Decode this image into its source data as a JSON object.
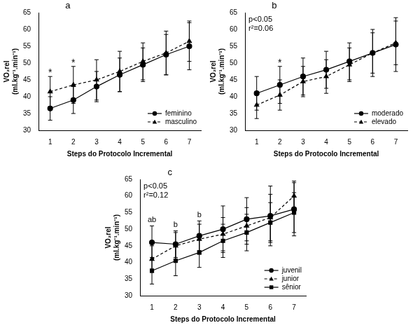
{
  "chart_data": [
    {
      "type": "line",
      "panel_label": "a",
      "x_label": "Steps do Protocolo Incremental",
      "y_label": [
        "VO₂rel",
        "(ml.kg⁻¹.min⁻¹)"
      ],
      "categories": [
        "1",
        "2",
        "3",
        "4",
        "5",
        "6",
        "7"
      ],
      "series": [
        {
          "name": "feminino",
          "color": "#000000",
          "marker": "circle",
          "line_style": "solid",
          "values": [
            36.5,
            39,
            43,
            46.5,
            49.5,
            52.5,
            55
          ],
          "errors": [
            3.5,
            4,
            4.5,
            5,
            5,
            6,
            7
          ]
        },
        {
          "name": "masculino",
          "color": "#000000",
          "marker": "triangle",
          "line_style": "dashed",
          "values": [
            41.5,
            43.5,
            45,
            47.5,
            50.5,
            53,
            56.5
          ],
          "errors": [
            4.5,
            5.5,
            6,
            6,
            5.5,
            6.5,
            6
          ]
        }
      ],
      "ylim": [
        30,
        65
      ],
      "yticks": [
        30,
        35,
        40,
        45,
        50,
        55,
        60,
        65
      ],
      "grid": false,
      "legend": "lower right",
      "annotations": [
        {
          "text": "*",
          "category": "1"
        },
        {
          "text": "*",
          "category": "2"
        }
      ]
    },
    {
      "type": "line",
      "panel_label": "b",
      "x_label": "Steps do Protocolo Incremental",
      "y_label": [
        "VO₂rel",
        "(ml.kg⁻¹.min⁻¹)"
      ],
      "categories": [
        "1",
        "2",
        "3",
        "4",
        "5",
        "6",
        "7"
      ],
      "series": [
        {
          "name": "moderado",
          "color": "#000000",
          "marker": "circle",
          "line_style": "solid",
          "values": [
            41,
            43.5,
            46,
            48,
            50.5,
            53,
            55.5
          ],
          "errors": [
            5,
            5.5,
            5.5,
            5.5,
            5.5,
            7,
            8
          ]
        },
        {
          "name": "elevado",
          "color": "#000000",
          "marker": "triangle",
          "line_style": "dashed",
          "values": [
            37.5,
            40.5,
            44.5,
            46,
            49.5,
            53,
            56
          ],
          "errors": [
            4,
            4.5,
            4.5,
            5,
            5,
            6,
            6.5
          ]
        }
      ],
      "ylim": [
        30,
        65
      ],
      "yticks": [
        30,
        35,
        40,
        45,
        50,
        55,
        60,
        65
      ],
      "grid": false,
      "legend": "lower right",
      "annotations": [
        {
          "text": "p<0.05"
        },
        {
          "text": "r²=0.06"
        },
        {
          "text": "*",
          "category": "2"
        }
      ]
    },
    {
      "type": "line",
      "panel_label": "c",
      "x_label": "Steps do Protocolo Incremental",
      "y_label": [
        "VO₂rel",
        "(ml.kg⁻¹.min⁻¹)"
      ],
      "categories": [
        "1",
        "2",
        "3",
        "4",
        "5",
        "6",
        "7"
      ],
      "series": [
        {
          "name": "juvenil",
          "color": "#000000",
          "marker": "circle",
          "line_style": "solid",
          "values": [
            46,
            45.5,
            48,
            50,
            53,
            54,
            56
          ],
          "errors": [
            5,
            4,
            4.5,
            7,
            6.5,
            9,
            8
          ]
        },
        {
          "name": "junior",
          "color": "#000000",
          "marker": "triangle",
          "line_style": "dashed",
          "values": [
            41,
            45,
            47,
            48.5,
            51,
            53.5,
            60
          ],
          "errors": [
            4,
            4,
            4.5,
            5,
            5.5,
            7,
            4.5
          ]
        },
        {
          "name": "sênior",
          "color": "#000000",
          "marker": "square",
          "line_style": "solid",
          "values": [
            37.5,
            40.5,
            43,
            46.5,
            49,
            52,
            55
          ],
          "errors": [
            4,
            4.5,
            4.5,
            5,
            5.5,
            6,
            6
          ]
        }
      ],
      "ylim": [
        30,
        65
      ],
      "yticks": [
        30,
        35,
        40,
        45,
        50,
        55,
        60,
        65
      ],
      "grid": false,
      "legend": "lower right",
      "annotations": [
        {
          "text": "p<0.05"
        },
        {
          "text": "r²=0.12"
        },
        {
          "text": "ab",
          "category": "1"
        },
        {
          "text": "b",
          "category": "2"
        },
        {
          "text": "b",
          "category": "3"
        }
      ]
    }
  ]
}
